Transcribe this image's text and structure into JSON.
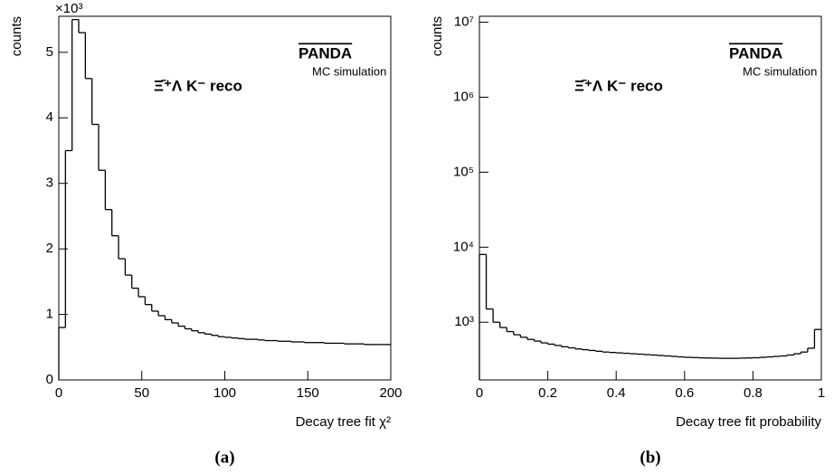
{
  "chart_data": [
    {
      "type": "histogram",
      "y_axis_label": "counts",
      "y_multiplier_label": "×10³",
      "x_axis_label": "Decay tree fit χ²",
      "logo": "PANDA",
      "logo_subtitle": "MC simulation",
      "annotation": "Ξ̄⁺Λ K⁻ reco",
      "panel_label": "(a)",
      "color": "#000000",
      "log_y": false,
      "bins": [
        0,
        4,
        8,
        12,
        16,
        20,
        24,
        28,
        32,
        36,
        40,
        44,
        48,
        52,
        56,
        60,
        64,
        68,
        72,
        76,
        80,
        84,
        88,
        92,
        96,
        100,
        104,
        108,
        112,
        116,
        120,
        124,
        128,
        132,
        136,
        140,
        144,
        148,
        152,
        156,
        160,
        164,
        168,
        172,
        176,
        180,
        184,
        188,
        192,
        196,
        200
      ],
      "values": [
        0.8,
        3.5,
        5.5,
        5.3,
        4.6,
        3.9,
        3.2,
        2.6,
        2.2,
        1.85,
        1.6,
        1.4,
        1.27,
        1.15,
        1.05,
        0.98,
        0.92,
        0.87,
        0.82,
        0.78,
        0.75,
        0.72,
        0.7,
        0.68,
        0.66,
        0.65,
        0.64,
        0.63,
        0.62,
        0.62,
        0.61,
        0.6,
        0.6,
        0.59,
        0.59,
        0.58,
        0.58,
        0.57,
        0.57,
        0.57,
        0.56,
        0.56,
        0.56,
        0.55,
        0.55,
        0.55,
        0.54,
        0.54,
        0.54,
        0.54
      ],
      "xlim": [
        0,
        200
      ],
      "xticks": [
        0,
        50,
        100,
        150,
        200
      ],
      "ylim": [
        0,
        5.55
      ],
      "yticks": [
        0,
        1,
        2,
        3,
        4,
        5
      ]
    },
    {
      "type": "histogram",
      "y_axis_label": "counts",
      "x_axis_label": "Decay tree fit probability",
      "logo": "PANDA",
      "logo_subtitle": "MC simulation",
      "annotation": "Ξ̄⁺Λ K⁻ reco",
      "panel_label": "(b)",
      "color": "#000000",
      "log_y": true,
      "bins": [
        0,
        0.02,
        0.04,
        0.06,
        0.08,
        0.1,
        0.12,
        0.14,
        0.16,
        0.18,
        0.2,
        0.22,
        0.24,
        0.26,
        0.28,
        0.3,
        0.32,
        0.34,
        0.36,
        0.38,
        0.4,
        0.42,
        0.44,
        0.46,
        0.48,
        0.5,
        0.52,
        0.54,
        0.56,
        0.58,
        0.6,
        0.62,
        0.64,
        0.66,
        0.68,
        0.7,
        0.72,
        0.74,
        0.76,
        0.78,
        0.8,
        0.82,
        0.84,
        0.86,
        0.88,
        0.9,
        0.92,
        0.94,
        0.96,
        0.98,
        1
      ],
      "values": [
        8000,
        1500,
        1000,
        850,
        750,
        680,
        630,
        590,
        560,
        530,
        510,
        490,
        470,
        455,
        440,
        430,
        420,
        410,
        400,
        395,
        390,
        385,
        380,
        375,
        370,
        365,
        360,
        355,
        350,
        345,
        340,
        338,
        335,
        333,
        332,
        330,
        330,
        330,
        332,
        334,
        336,
        340,
        345,
        350,
        355,
        365,
        380,
        400,
        450,
        800
      ],
      "xlim": [
        0,
        1
      ],
      "xticks": [
        0,
        0.2,
        0.4,
        0.6,
        0.8,
        1
      ],
      "ylim": [
        170,
        12000000
      ],
      "yticks": [
        {
          "value": 1000,
          "label": "10³"
        },
        {
          "value": 10000,
          "label": "10⁴"
        },
        {
          "value": 100000,
          "label": "10⁵"
        },
        {
          "value": 1000000,
          "label": "10⁶"
        },
        {
          "value": 10000000,
          "label": "10⁷"
        }
      ]
    }
  ]
}
